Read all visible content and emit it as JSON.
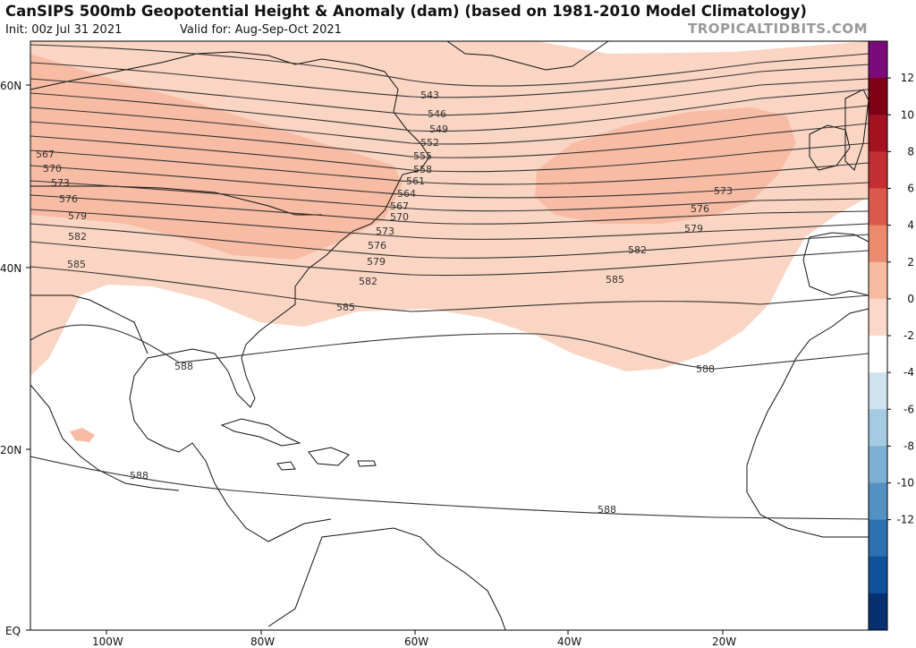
{
  "header": {
    "title": "CanSIPS 500mb Geopotential Height & Anomaly (dam) (based on 1981-2010 Model Climatology)",
    "init": "Init: 00z Jul 31 2021",
    "valid": "Valid for: Aug-Sep-Oct 2021",
    "brand": "TROPICALTIDBITS.COM"
  },
  "axes": {
    "lat_labels": [
      "60N",
      "40N",
      "20N",
      "EQ"
    ],
    "lon_labels": [
      "100W",
      "80W",
      "60W",
      "40W",
      "20W"
    ]
  },
  "contours": {
    "color": "#333333",
    "labels": [
      "543",
      "546",
      "549",
      "552",
      "555",
      "558",
      "561",
      "564",
      "567",
      "570",
      "573",
      "576",
      "579",
      "582",
      "585",
      "588"
    ]
  },
  "colorbar": {
    "ticks": [
      "12",
      "10",
      "8",
      "6",
      "4",
      "2",
      "0",
      "-2",
      "-4",
      "-6",
      "-8",
      "-10",
      "-12"
    ],
    "colors": [
      "#7b0a7b",
      "#7f0015",
      "#a2121f",
      "#c42f33",
      "#dc5a4c",
      "#ec8a6e",
      "#f7bba1",
      "#fbd8c8",
      "#ffffff",
      "#cfe3ef",
      "#a5cbe2",
      "#7db0d4",
      "#5491c3",
      "#2c71b2",
      "#10519b",
      "#06306f"
    ]
  },
  "anomaly": {
    "shade_light": "#fbd5c3",
    "shade_mid": "#f7bca3"
  }
}
